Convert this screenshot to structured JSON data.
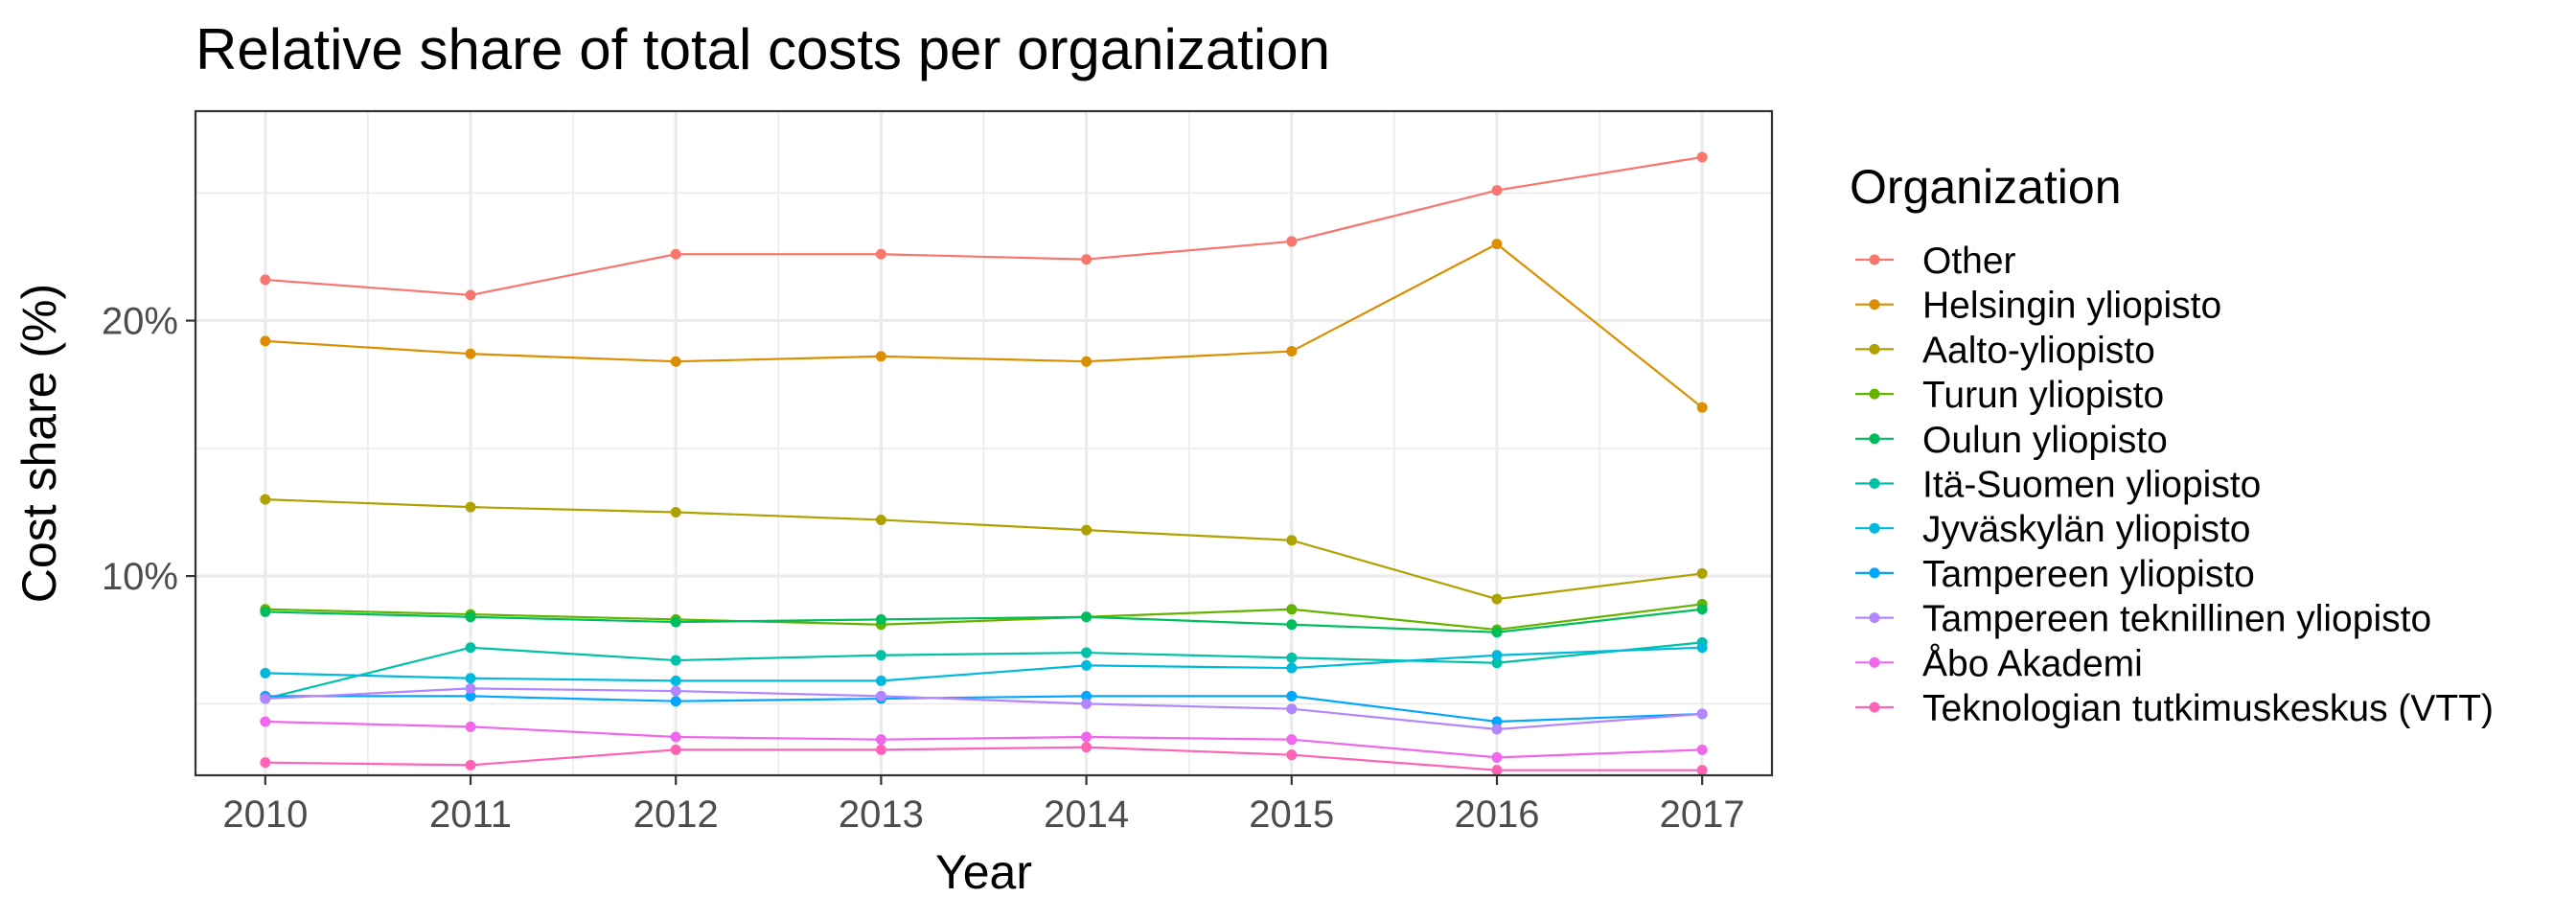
{
  "chart_data": {
    "type": "line",
    "title": "Relative share of total costs per organization",
    "xlabel": "Year",
    "ylabel": "Cost share (%)",
    "x": [
      2010,
      2011,
      2012,
      2013,
      2014,
      2015,
      2016,
      2017
    ],
    "x_tick_labels": [
      "2010",
      "2011",
      "2012",
      "2013",
      "2014",
      "2015",
      "2016",
      "2017"
    ],
    "y_ticks": [
      10,
      20
    ],
    "y_tick_labels": [
      "10%",
      "20%"
    ],
    "xlim": [
      2009.66,
      2017.34
    ],
    "ylim": [
      2.2,
      28.2
    ],
    "grid": true,
    "legend": {
      "title": "Organization",
      "position": "right"
    },
    "series": [
      {
        "name": "Other",
        "color": "#F8766D",
        "values": [
          21.6,
          21.0,
          22.6,
          22.6,
          22.4,
          23.1,
          25.1,
          26.4
        ]
      },
      {
        "name": "Helsingin yliopisto",
        "color": "#DB8E00",
        "values": [
          19.2,
          18.7,
          18.4,
          18.6,
          18.4,
          18.8,
          23.0,
          16.6
        ]
      },
      {
        "name": "Aalto-yliopisto",
        "color": "#AEA200",
        "values": [
          13.0,
          12.7,
          12.5,
          12.2,
          11.8,
          11.4,
          9.1,
          10.1
        ]
      },
      {
        "name": "Turun yliopisto",
        "color": "#64B200",
        "values": [
          8.7,
          8.5,
          8.3,
          8.1,
          8.4,
          8.7,
          7.9,
          8.9
        ]
      },
      {
        "name": "Oulun yliopisto",
        "color": "#00BD5C",
        "values": [
          8.6,
          8.4,
          8.2,
          8.3,
          8.4,
          8.1,
          7.8,
          8.7
        ]
      },
      {
        "name": "Itä-Suomen yliopisto",
        "color": "#00C1A7",
        "values": [
          5.2,
          7.2,
          6.7,
          6.9,
          7.0,
          6.8,
          6.6,
          7.4
        ]
      },
      {
        "name": "Jyväskylän yliopisto",
        "color": "#00BADE",
        "values": [
          6.2,
          6.0,
          5.9,
          5.9,
          6.5,
          6.4,
          6.9,
          7.2
        ]
      },
      {
        "name": "Tampereen yliopisto",
        "color": "#00A6FF",
        "values": [
          5.3,
          5.3,
          5.1,
          5.2,
          5.3,
          5.3,
          4.3,
          4.6
        ]
      },
      {
        "name": "Tampereen teknillinen yliopisto",
        "color": "#B385FF",
        "values": [
          5.2,
          5.6,
          5.5,
          5.3,
          5.0,
          4.8,
          4.0,
          4.6
        ]
      },
      {
        "name": "Åbo Akademi",
        "color": "#EF67EB",
        "values": [
          4.3,
          4.1,
          3.7,
          3.6,
          3.7,
          3.6,
          2.9,
          3.2
        ]
      },
      {
        "name": "Teknologian tutkimuskeskus (VTT)",
        "color": "#FF63B6",
        "values": [
          2.7,
          2.6,
          3.2,
          3.2,
          3.3,
          3.0,
          2.4,
          2.4
        ]
      }
    ]
  }
}
